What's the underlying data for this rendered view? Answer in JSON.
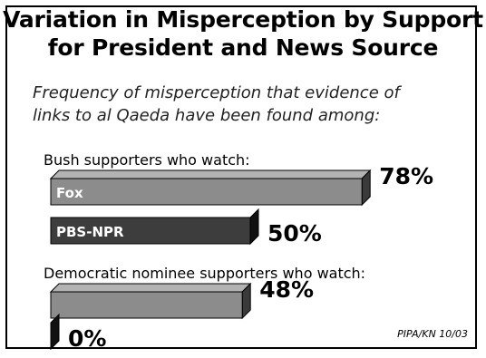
{
  "title": {
    "line1": "Variation in Misperception by Support",
    "line2": "for President and News Source"
  },
  "subtitle": {
    "line1": "Frequency of misperception that evidence of",
    "line2": "links to al Qaeda have been found among:"
  },
  "source": "PIPA/KN 10/03",
  "colors": {
    "light_bar": "#8c8c8c",
    "light_top": "#b3b3b3",
    "light_side": "#3a3a3a",
    "dark_bar": "#3d3d3d",
    "dark_top": "#666666",
    "dark_side": "#111111"
  },
  "chart_data": {
    "type": "bar",
    "orientation": "horizontal",
    "xlim": [
      0,
      100
    ],
    "groups": [
      {
        "label": "Bush supporters who watch:",
        "bars": [
          {
            "name": "Fox",
            "value": 78,
            "value_label": "78%",
            "shade": "light"
          },
          {
            "name": "PBS-NPR",
            "value": 50,
            "value_label": "50%",
            "shade": "dark"
          }
        ]
      },
      {
        "label": "Democratic nominee  supporters who watch:",
        "bars": [
          {
            "name": "",
            "value": 48,
            "value_label": "48%",
            "shade": "light"
          },
          {
            "name": "",
            "value": 0,
            "value_label": "0%",
            "shade": "dark"
          }
        ]
      }
    ]
  }
}
